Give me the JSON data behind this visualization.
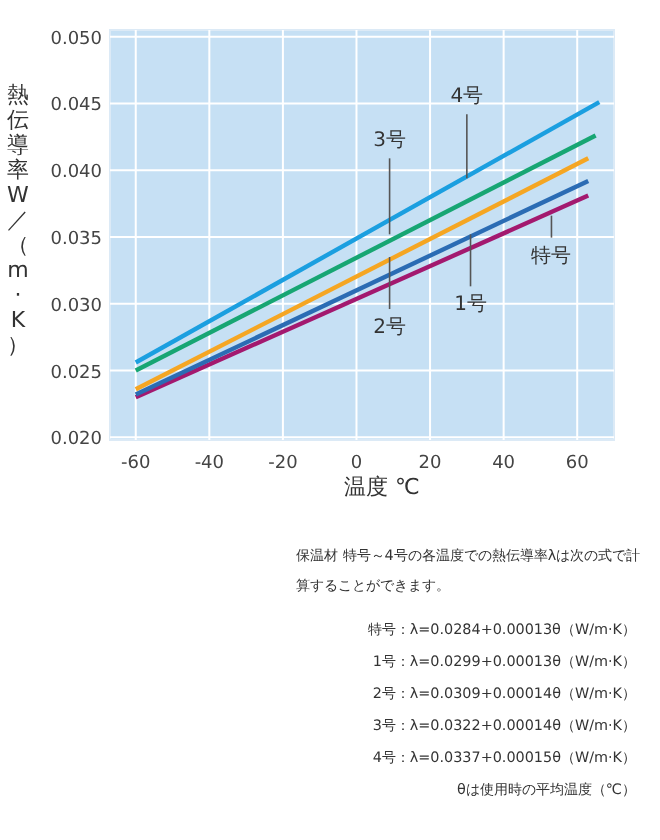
{
  "chart_data": {
    "type": "line",
    "xlabel": "温度 ℃",
    "ylabel": "熱伝導率W／（m·K）",
    "xlim": [
      -67,
      70
    ],
    "xticks": [
      -60,
      -40,
      -20,
      0,
      20,
      40,
      60
    ],
    "ylim": [
      0.0198,
      0.0505
    ],
    "yticks": [
      {
        "value": 0.02,
        "label": "0.020"
      },
      {
        "value": 0.025,
        "label": "0.025"
      },
      {
        "value": 0.03,
        "label": "0.030"
      },
      {
        "value": 0.035,
        "label": "0.035"
      },
      {
        "value": 0.04,
        "label": "0.040"
      },
      {
        "value": 0.045,
        "label": "0.045"
      },
      {
        "value": 0.05,
        "label": "0.050"
      }
    ],
    "grid": true,
    "series": [
      {
        "color": "#a3196f",
        "x": [
          -60,
          63
        ],
        "values": [
          0.023,
          0.0381
        ]
      },
      {
        "color": "#2b6cb4",
        "x": [
          -60,
          63
        ],
        "values": [
          0.0232,
          0.0392
        ]
      },
      {
        "color": "#f5a623",
        "x": [
          -60,
          63
        ],
        "values": [
          0.0236,
          0.0409
        ]
      },
      {
        "color": "#17a673",
        "x": [
          -60,
          65
        ],
        "values": [
          0.025,
          0.0426
        ]
      },
      {
        "color": "#1b9fe0",
        "x": [
          -60,
          66
        ],
        "values": [
          0.0256,
          0.0451
        ]
      }
    ],
    "annotations": [
      {
        "text": "4号",
        "x": 30,
        "y": 0.0394
      },
      {
        "text": "3号",
        "x": 9,
        "y": 0.0352
      },
      {
        "text": "2号",
        "x": 9,
        "y": 0.0335
      },
      {
        "text": "1号",
        "x": 31,
        "y": 0.0352
      },
      {
        "text": "特号",
        "x": 53,
        "y": 0.0366
      },
      "保温材 特号～4号の各温度での熱伝導率λは次の式で計算することができます。",
      "特号：λ=0.0284+0.00013θ（W/m·K）",
      "1号：λ=0.0299+0.00013θ（W/m·K）",
      "2号：λ=0.0309+0.00014θ（W/m·K）",
      "3号：λ=0.0322+0.00014θ（W/m·K）",
      "4号：λ=0.0337+0.00015θ（W/m·K）",
      "θは使用時の平均温度（℃）"
    ]
  }
}
